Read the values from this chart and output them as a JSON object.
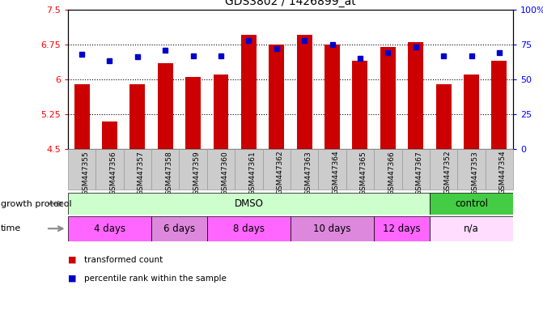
{
  "title": "GDS3802 / 1426899_at",
  "samples": [
    "GSM447355",
    "GSM447356",
    "GSM447357",
    "GSM447358",
    "GSM447359",
    "GSM447360",
    "GSM447361",
    "GSM447362",
    "GSM447363",
    "GSM447364",
    "GSM447365",
    "GSM447366",
    "GSM447367",
    "GSM447352",
    "GSM447353",
    "GSM447354"
  ],
  "transformed_count": [
    5.9,
    5.1,
    5.9,
    6.35,
    6.05,
    6.1,
    6.95,
    6.75,
    6.95,
    6.75,
    6.4,
    6.7,
    6.8,
    5.9,
    6.1,
    6.4
  ],
  "percentile_rank": [
    68,
    63,
    66,
    71,
    67,
    67,
    78,
    72,
    78,
    75,
    65,
    69,
    73,
    67,
    67,
    69
  ],
  "bar_color": "#cc0000",
  "dot_color": "#0000cc",
  "ylim_left": [
    4.5,
    7.5
  ],
  "ylim_right": [
    0,
    100
  ],
  "yticks_left": [
    4.5,
    5.25,
    6.0,
    6.75,
    7.5
  ],
  "yticks_right": [
    0,
    25,
    50,
    75,
    100
  ],
  "ytick_labels_left": [
    "4.5",
    "5.25",
    "6",
    "6.75",
    "7.5"
  ],
  "ytick_labels_right": [
    "0",
    "25",
    "50",
    "75",
    "100%"
  ],
  "hlines": [
    5.25,
    6.0,
    6.75
  ],
  "growth_protocol_groups": [
    {
      "label": "DMSO",
      "start": 0,
      "end": 13,
      "color": "#ccffcc"
    },
    {
      "label": "control",
      "start": 13,
      "end": 16,
      "color": "#44cc44"
    }
  ],
  "time_groups": [
    {
      "label": "4 days",
      "start": 0,
      "end": 3,
      "color": "#ff66ff"
    },
    {
      "label": "6 days",
      "start": 3,
      "end": 5,
      "color": "#dd88dd"
    },
    {
      "label": "8 days",
      "start": 5,
      "end": 8,
      "color": "#ff66ff"
    },
    {
      "label": "10 days",
      "start": 8,
      "end": 11,
      "color": "#dd88dd"
    },
    {
      "label": "12 days",
      "start": 11,
      "end": 13,
      "color": "#ff66ff"
    },
    {
      "label": "n/a",
      "start": 13,
      "end": 16,
      "color": "#ffddff"
    }
  ],
  "legend_red": "transformed count",
  "legend_blue": "percentile rank within the sample",
  "label_growth": "growth protocol",
  "label_time": "time",
  "bar_width": 0.55,
  "xtick_bg_color": "#cccccc",
  "xtick_border_color": "#999999"
}
